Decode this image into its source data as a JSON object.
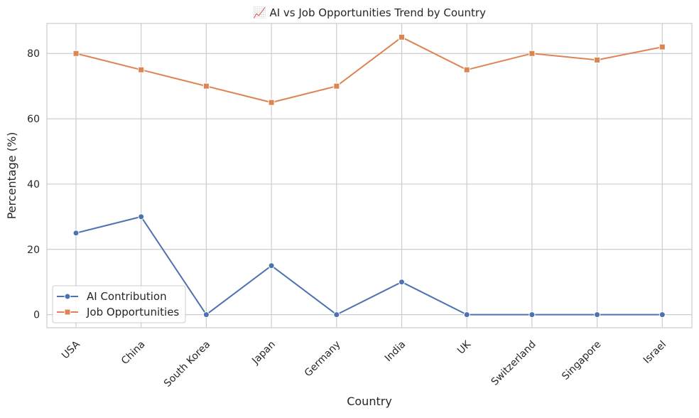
{
  "chart_data": {
    "type": "line",
    "title": "📈 AI vs Job Opportunities Trend by Country",
    "xlabel": "Country",
    "ylabel": "Percentage (%)",
    "categories": [
      "USA",
      "China",
      "South Korea",
      "Japan",
      "Germany",
      "India",
      "UK",
      "Switzerland",
      "Singapore",
      "Israel"
    ],
    "ylim": [
      -4,
      89.2
    ],
    "yticks": [
      0,
      20,
      40,
      60,
      80
    ],
    "grid": true,
    "legend_position": "lower-left",
    "series": [
      {
        "name": "AI Contribution",
        "values": [
          25,
          30,
          0,
          15,
          0,
          10,
          0,
          0,
          0,
          0
        ],
        "color": "#4c72b0",
        "marker": "circle"
      },
      {
        "name": "Job Opportunities",
        "values": [
          80,
          75,
          70,
          65,
          70,
          85,
          75,
          80,
          78,
          82
        ],
        "color": "#dd8452",
        "marker": "square"
      }
    ]
  }
}
